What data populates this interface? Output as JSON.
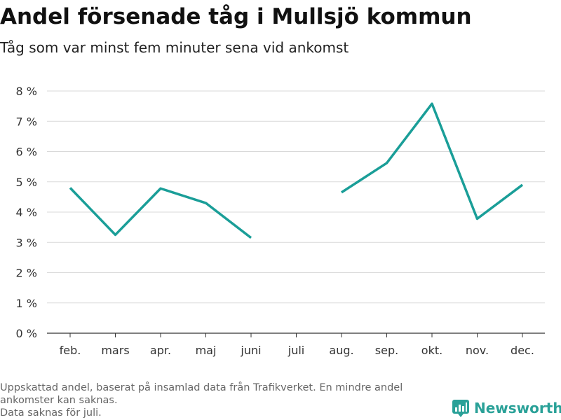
{
  "header": {
    "title": "Andel försenade tåg i Mullsjö kommun",
    "subtitle": "Tåg som var minst fem minuter sena vid ankomst"
  },
  "footer": {
    "note_line1": "Uppskattad andel, baserat på insamlad data från Trafikverket. En mindre andel ankomster kan saknas.",
    "note_line2": "Data saknas för juli.",
    "brand": "Newsworthy",
    "brand_icon": "newsworthy-logo-icon",
    "brand_color": "#2aa198"
  },
  "chart_data": {
    "type": "line",
    "title": "Andel försenade tåg i Mullsjö kommun",
    "subtitle": "Tåg som var minst fem minuter sena vid ankomst",
    "categories": [
      "feb.",
      "mars",
      "apr.",
      "maj",
      "juni",
      "juli",
      "aug.",
      "sep.",
      "okt.",
      "nov.",
      "dec."
    ],
    "series": [
      {
        "values": [
          4.8,
          3.25,
          4.78,
          4.3,
          3.15,
          null,
          4.65,
          5.62,
          7.58,
          3.78,
          4.9
        ],
        "color": "#1a9e98"
      }
    ],
    "ylim": [
      0,
      8
    ],
    "yticks": [
      0,
      1,
      2,
      3,
      4,
      5,
      6,
      7,
      8
    ],
    "ytick_labels": [
      "0 %",
      "1 %",
      "2 %",
      "3 %",
      "4 %",
      "5 %",
      "6 %",
      "7 %",
      "8 %"
    ],
    "grid": true,
    "xlabel": "",
    "ylabel": ""
  }
}
